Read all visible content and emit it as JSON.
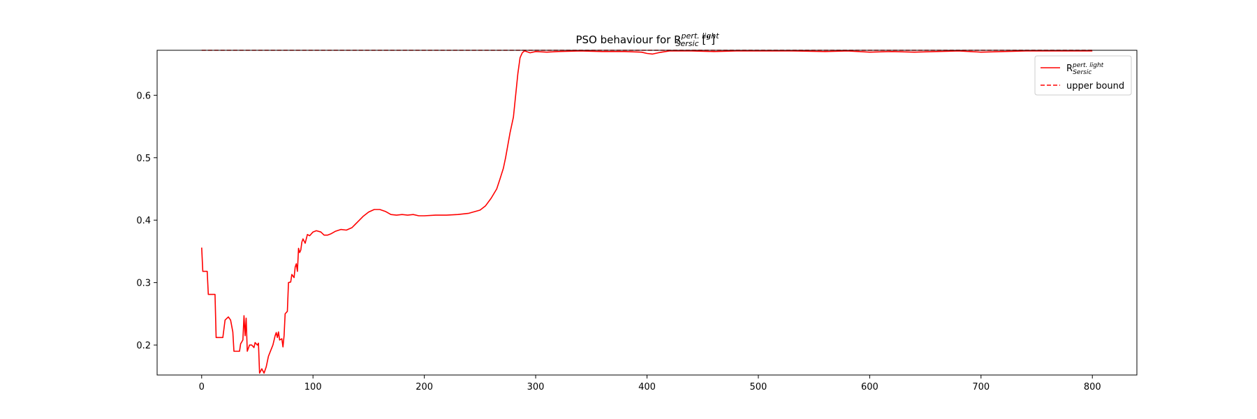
{
  "chart_data": {
    "type": "line",
    "title": {
      "prefix": "PSO behaviour for R",
      "superscript": "pert. light",
      "subscript": "Sersic",
      "suffix": " [\"]"
    },
    "xlabel": "",
    "ylabel": "",
    "xlim": [
      -40,
      840
    ],
    "ylim": [
      0.152,
      0.672
    ],
    "xticks": [
      "0",
      "100",
      "200",
      "300",
      "400",
      "500",
      "600",
      "700",
      "800"
    ],
    "yticks": [
      "0.2",
      "0.3",
      "0.4",
      "0.5",
      "0.6"
    ],
    "grid": false,
    "legend_position": "top-right",
    "colors": {
      "series": "#ff0000",
      "bound": "#ff0000"
    },
    "series": [
      {
        "name": "R_Sersic^pert. light",
        "legend_main": "R",
        "legend_sup": "pert. light",
        "legend_sub": "Sersic",
        "style": "solid",
        "points": [
          [
            0,
            0.356
          ],
          [
            1,
            0.318
          ],
          [
            5,
            0.318
          ],
          [
            6,
            0.281
          ],
          [
            12,
            0.281
          ],
          [
            13,
            0.212
          ],
          [
            19,
            0.212
          ],
          [
            21,
            0.24
          ],
          [
            24,
            0.245
          ],
          [
            26,
            0.24
          ],
          [
            28,
            0.221
          ],
          [
            29,
            0.19
          ],
          [
            34,
            0.19
          ],
          [
            35,
            0.202
          ],
          [
            37,
            0.208
          ],
          [
            38,
            0.247
          ],
          [
            39,
            0.215
          ],
          [
            40,
            0.243
          ],
          [
            41,
            0.19
          ],
          [
            43,
            0.2
          ],
          [
            45,
            0.2
          ],
          [
            47,
            0.196
          ],
          [
            48,
            0.204
          ],
          [
            50,
            0.2
          ],
          [
            51,
            0.203
          ],
          [
            52,
            0.155
          ],
          [
            54,
            0.162
          ],
          [
            56,
            0.155
          ],
          [
            58,
            0.165
          ],
          [
            60,
            0.182
          ],
          [
            62,
            0.191
          ],
          [
            64,
            0.2
          ],
          [
            66,
            0.215
          ],
          [
            67,
            0.22
          ],
          [
            68,
            0.212
          ],
          [
            69,
            0.221
          ],
          [
            70,
            0.208
          ],
          [
            72,
            0.21
          ],
          [
            73,
            0.197
          ],
          [
            74,
            0.215
          ],
          [
            75,
            0.25
          ],
          [
            77,
            0.254
          ],
          [
            78,
            0.3
          ],
          [
            80,
            0.301
          ],
          [
            81,
            0.313
          ],
          [
            83,
            0.308
          ],
          [
            84,
            0.325
          ],
          [
            85,
            0.33
          ],
          [
            86,
            0.318
          ],
          [
            87,
            0.355
          ],
          [
            88,
            0.348
          ],
          [
            89,
            0.352
          ],
          [
            90,
            0.365
          ],
          [
            91,
            0.37
          ],
          [
            93,
            0.363
          ],
          [
            95,
            0.377
          ],
          [
            97,
            0.375
          ],
          [
            100,
            0.381
          ],
          [
            103,
            0.383
          ],
          [
            107,
            0.381
          ],
          [
            110,
            0.376
          ],
          [
            113,
            0.376
          ],
          [
            116,
            0.378
          ],
          [
            120,
            0.382
          ],
          [
            125,
            0.385
          ],
          [
            130,
            0.384
          ],
          [
            135,
            0.388
          ],
          [
            140,
            0.397
          ],
          [
            145,
            0.406
          ],
          [
            150,
            0.413
          ],
          [
            155,
            0.417
          ],
          [
            160,
            0.417
          ],
          [
            165,
            0.414
          ],
          [
            170,
            0.409
          ],
          [
            175,
            0.408
          ],
          [
            180,
            0.409
          ],
          [
            185,
            0.408
          ],
          [
            190,
            0.409
          ],
          [
            195,
            0.407
          ],
          [
            200,
            0.407
          ],
          [
            210,
            0.408
          ],
          [
            220,
            0.408
          ],
          [
            230,
            0.409
          ],
          [
            240,
            0.411
          ],
          [
            250,
            0.416
          ],
          [
            255,
            0.423
          ],
          [
            260,
            0.435
          ],
          [
            265,
            0.45
          ],
          [
            268,
            0.466
          ],
          [
            271,
            0.483
          ],
          [
            273,
            0.5
          ],
          [
            275,
            0.52
          ],
          [
            277,
            0.54
          ],
          [
            280,
            0.565
          ],
          [
            282,
            0.6
          ],
          [
            284,
            0.635
          ],
          [
            286,
            0.66
          ],
          [
            288,
            0.668
          ],
          [
            290,
            0.671
          ],
          [
            295,
            0.668
          ],
          [
            300,
            0.67
          ],
          [
            310,
            0.669
          ],
          [
            320,
            0.67
          ],
          [
            340,
            0.671
          ],
          [
            360,
            0.67
          ],
          [
            380,
            0.67
          ],
          [
            395,
            0.669
          ],
          [
            400,
            0.667
          ],
          [
            405,
            0.666
          ],
          [
            410,
            0.668
          ],
          [
            420,
            0.671
          ],
          [
            440,
            0.671
          ],
          [
            460,
            0.67
          ],
          [
            480,
            0.671
          ],
          [
            500,
            0.671
          ],
          [
            530,
            0.671
          ],
          [
            560,
            0.67
          ],
          [
            580,
            0.671
          ],
          [
            600,
            0.669
          ],
          [
            620,
            0.67
          ],
          [
            640,
            0.669
          ],
          [
            660,
            0.67
          ],
          [
            680,
            0.671
          ],
          [
            700,
            0.669
          ],
          [
            720,
            0.67
          ],
          [
            740,
            0.671
          ],
          [
            760,
            0.671
          ],
          [
            780,
            0.671
          ],
          [
            800,
            0.671
          ]
        ]
      },
      {
        "name": "upper bound",
        "style": "dashed",
        "points": [
          [
            0,
            0.672
          ],
          [
            800,
            0.672
          ]
        ]
      }
    ]
  }
}
